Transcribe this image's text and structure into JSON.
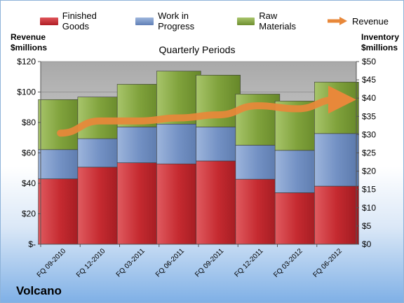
{
  "chart_data": {
    "type": "bar",
    "stacked": true,
    "title": "Quarterly Periods",
    "company": "Volcano",
    "y_left_label": [
      "Revenue",
      "$millions"
    ],
    "y_right_label": [
      "Inventory",
      "$millions"
    ],
    "y_left_ticks": [
      "$-",
      "$20",
      "$40",
      "$60",
      "$80",
      "$100",
      "$120"
    ],
    "y_right_ticks": [
      "$0",
      "$5",
      "$10",
      "$15",
      "$20",
      "$25",
      "$30",
      "$35",
      "$40",
      "$45",
      "$50"
    ],
    "y_left_range": [
      0,
      120
    ],
    "y_right_range": [
      0,
      50
    ],
    "categories": [
      "FQ 09-2010",
      "FQ 12-2010",
      "FQ 03-2011",
      "FQ 06-2011",
      "FQ 09-2011",
      "FQ 12-2011",
      "FQ 03-2012",
      "FQ 06-2012"
    ],
    "series": [
      {
        "name": "Finished Goods",
        "axis": "right",
        "color": "#c0262c",
        "values": [
          17.9,
          21.1,
          22.3,
          22.0,
          22.8,
          17.8,
          14.1,
          15.9
        ]
      },
      {
        "name": "Work in Progress",
        "axis": "right",
        "color": "#6f8ec2",
        "values": [
          8.0,
          7.8,
          9.8,
          10.9,
          9.3,
          9.3,
          11.6,
          14.4
        ]
      },
      {
        "name": "Raw Materials",
        "axis": "right",
        "color": "#7d9e3b",
        "values": [
          13.7,
          11.4,
          11.7,
          14.5,
          14.2,
          14.0,
          13.5,
          14.1
        ]
      },
      {
        "name": "Revenue",
        "axis": "left",
        "type": "line",
        "color": "#e8883a",
        "values": [
          73,
          81,
          81,
          83,
          85,
          91,
          89,
          95
        ]
      }
    ],
    "grid": true,
    "legend": "top"
  }
}
